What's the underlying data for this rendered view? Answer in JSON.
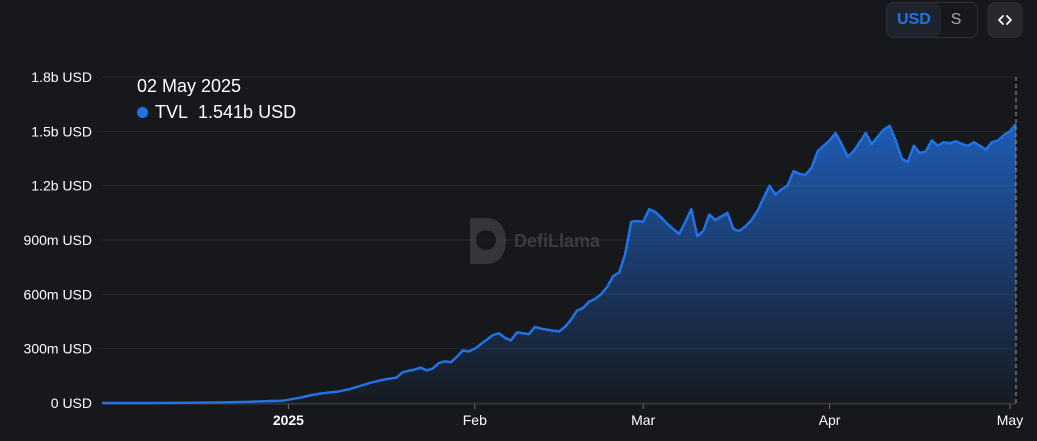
{
  "controls": {
    "currency_active": "USD",
    "currency_alt": "S",
    "embed_icon": "code-brackets-icon"
  },
  "tooltip": {
    "date": "02 May 2025",
    "series_name": "TVL",
    "value": "1.541b USD",
    "color": "#2172e5"
  },
  "watermark": {
    "text": "DefiLlama",
    "icon": "llama-logo-icon"
  },
  "colors": {
    "background": "#17181c",
    "line": "#2172e5",
    "grid": "#26282d"
  },
  "chart_data": {
    "type": "area",
    "title": "",
    "xlabel": "",
    "ylabel": "",
    "ylim": [
      0,
      1800
    ],
    "y_unit": "m USD",
    "y_ticks": [
      {
        "value": 0,
        "label": "0 USD"
      },
      {
        "value": 300,
        "label": "300m USD"
      },
      {
        "value": 600,
        "label": "600m USD"
      },
      {
        "value": 900,
        "label": "900m USD"
      },
      {
        "value": 1200,
        "label": "1.2b USD"
      },
      {
        "value": 1500,
        "label": "1.5b USD"
      },
      {
        "value": 1800,
        "label": "1.8b USD"
      }
    ],
    "xlim": [
      "2024-12-01",
      "2025-05-02"
    ],
    "x_ticks": [
      {
        "date": "2025-01-01",
        "label": "2025",
        "bold": true
      },
      {
        "date": "2025-02-01",
        "label": "Feb",
        "bold": false
      },
      {
        "date": "2025-03-01",
        "label": "Mar",
        "bold": false
      },
      {
        "date": "2025-04-01",
        "label": "Apr",
        "bold": false
      },
      {
        "date": "2025-05-01",
        "label": "May",
        "bold": false
      }
    ],
    "grid": true,
    "series": [
      {
        "name": "TVL",
        "points": [
          [
            "2024-12-01",
            0
          ],
          [
            "2024-12-10",
            0
          ],
          [
            "2024-12-20",
            3
          ],
          [
            "2024-12-25",
            6
          ],
          [
            "2024-12-28",
            10
          ],
          [
            "2024-12-31",
            12
          ],
          [
            "2025-01-01",
            18
          ],
          [
            "2025-01-03",
            30
          ],
          [
            "2025-01-05",
            45
          ],
          [
            "2025-01-07",
            55
          ],
          [
            "2025-01-09",
            62
          ],
          [
            "2025-01-11",
            75
          ],
          [
            "2025-01-13",
            95
          ],
          [
            "2025-01-15",
            115
          ],
          [
            "2025-01-17",
            130
          ],
          [
            "2025-01-19",
            140
          ],
          [
            "2025-01-20",
            170
          ],
          [
            "2025-01-22",
            185
          ],
          [
            "2025-01-23",
            195
          ],
          [
            "2025-01-24",
            180
          ],
          [
            "2025-01-25",
            190
          ],
          [
            "2025-01-26",
            220
          ],
          [
            "2025-01-27",
            230
          ],
          [
            "2025-01-28",
            225
          ],
          [
            "2025-01-29",
            255
          ],
          [
            "2025-01-30",
            290
          ],
          [
            "2025-01-31",
            285
          ],
          [
            "2025-02-01",
            300
          ],
          [
            "2025-02-03",
            350
          ],
          [
            "2025-02-04",
            375
          ],
          [
            "2025-02-05",
            385
          ],
          [
            "2025-02-06",
            360
          ],
          [
            "2025-02-07",
            345
          ],
          [
            "2025-02-08",
            390
          ],
          [
            "2025-02-09",
            385
          ],
          [
            "2025-02-10",
            380
          ],
          [
            "2025-02-11",
            420
          ],
          [
            "2025-02-12",
            410
          ],
          [
            "2025-02-13",
            405
          ],
          [
            "2025-02-14",
            400
          ],
          [
            "2025-02-15",
            395
          ],
          [
            "2025-02-16",
            420
          ],
          [
            "2025-02-17",
            460
          ],
          [
            "2025-02-18",
            510
          ],
          [
            "2025-02-19",
            525
          ],
          [
            "2025-02-20",
            560
          ],
          [
            "2025-02-21",
            575
          ],
          [
            "2025-02-22",
            600
          ],
          [
            "2025-02-23",
            640
          ],
          [
            "2025-02-24",
            700
          ],
          [
            "2025-02-25",
            720
          ],
          [
            "2025-02-26",
            820
          ],
          [
            "2025-02-27",
            1000
          ],
          [
            "2025-02-28",
            1005
          ],
          [
            "2025-03-01",
            1000
          ],
          [
            "2025-03-02",
            1070
          ],
          [
            "2025-03-03",
            1055
          ],
          [
            "2025-03-04",
            1025
          ],
          [
            "2025-03-05",
            990
          ],
          [
            "2025-03-06",
            960
          ],
          [
            "2025-03-07",
            935
          ],
          [
            "2025-03-08",
            1000
          ],
          [
            "2025-03-09",
            1070
          ],
          [
            "2025-03-10",
            920
          ],
          [
            "2025-03-11",
            950
          ],
          [
            "2025-03-12",
            1040
          ],
          [
            "2025-03-13",
            1010
          ],
          [
            "2025-03-14",
            1030
          ],
          [
            "2025-03-15",
            1050
          ],
          [
            "2025-03-16",
            960
          ],
          [
            "2025-03-17",
            950
          ],
          [
            "2025-03-18",
            975
          ],
          [
            "2025-03-19",
            1010
          ],
          [
            "2025-03-20",
            1060
          ],
          [
            "2025-03-21",
            1130
          ],
          [
            "2025-03-22",
            1200
          ],
          [
            "2025-03-23",
            1150
          ],
          [
            "2025-03-24",
            1180
          ],
          [
            "2025-03-25",
            1200
          ],
          [
            "2025-03-26",
            1280
          ],
          [
            "2025-03-27",
            1265
          ],
          [
            "2025-03-28",
            1260
          ],
          [
            "2025-03-29",
            1300
          ],
          [
            "2025-03-30",
            1390
          ],
          [
            "2025-03-31",
            1420
          ],
          [
            "2025-04-01",
            1450
          ],
          [
            "2025-04-02",
            1490
          ],
          [
            "2025-04-03",
            1430
          ],
          [
            "2025-04-04",
            1360
          ],
          [
            "2025-04-05",
            1390
          ],
          [
            "2025-04-06",
            1440
          ],
          [
            "2025-04-07",
            1490
          ],
          [
            "2025-04-08",
            1430
          ],
          [
            "2025-04-09",
            1470
          ],
          [
            "2025-04-10",
            1510
          ],
          [
            "2025-04-11",
            1530
          ],
          [
            "2025-04-12",
            1450
          ],
          [
            "2025-04-13",
            1350
          ],
          [
            "2025-04-14",
            1330
          ],
          [
            "2025-04-15",
            1420
          ],
          [
            "2025-04-16",
            1380
          ],
          [
            "2025-04-17",
            1390
          ],
          [
            "2025-04-18",
            1450
          ],
          [
            "2025-04-19",
            1420
          ],
          [
            "2025-04-20",
            1440
          ],
          [
            "2025-04-21",
            1435
          ],
          [
            "2025-04-22",
            1445
          ],
          [
            "2025-04-23",
            1430
          ],
          [
            "2025-04-24",
            1420
          ],
          [
            "2025-04-25",
            1440
          ],
          [
            "2025-04-26",
            1420
          ],
          [
            "2025-04-27",
            1400
          ],
          [
            "2025-04-28",
            1440
          ],
          [
            "2025-04-29",
            1450
          ],
          [
            "2025-04-30",
            1480
          ],
          [
            "2025-05-01",
            1500
          ],
          [
            "2025-05-02",
            1541
          ]
        ]
      }
    ]
  }
}
